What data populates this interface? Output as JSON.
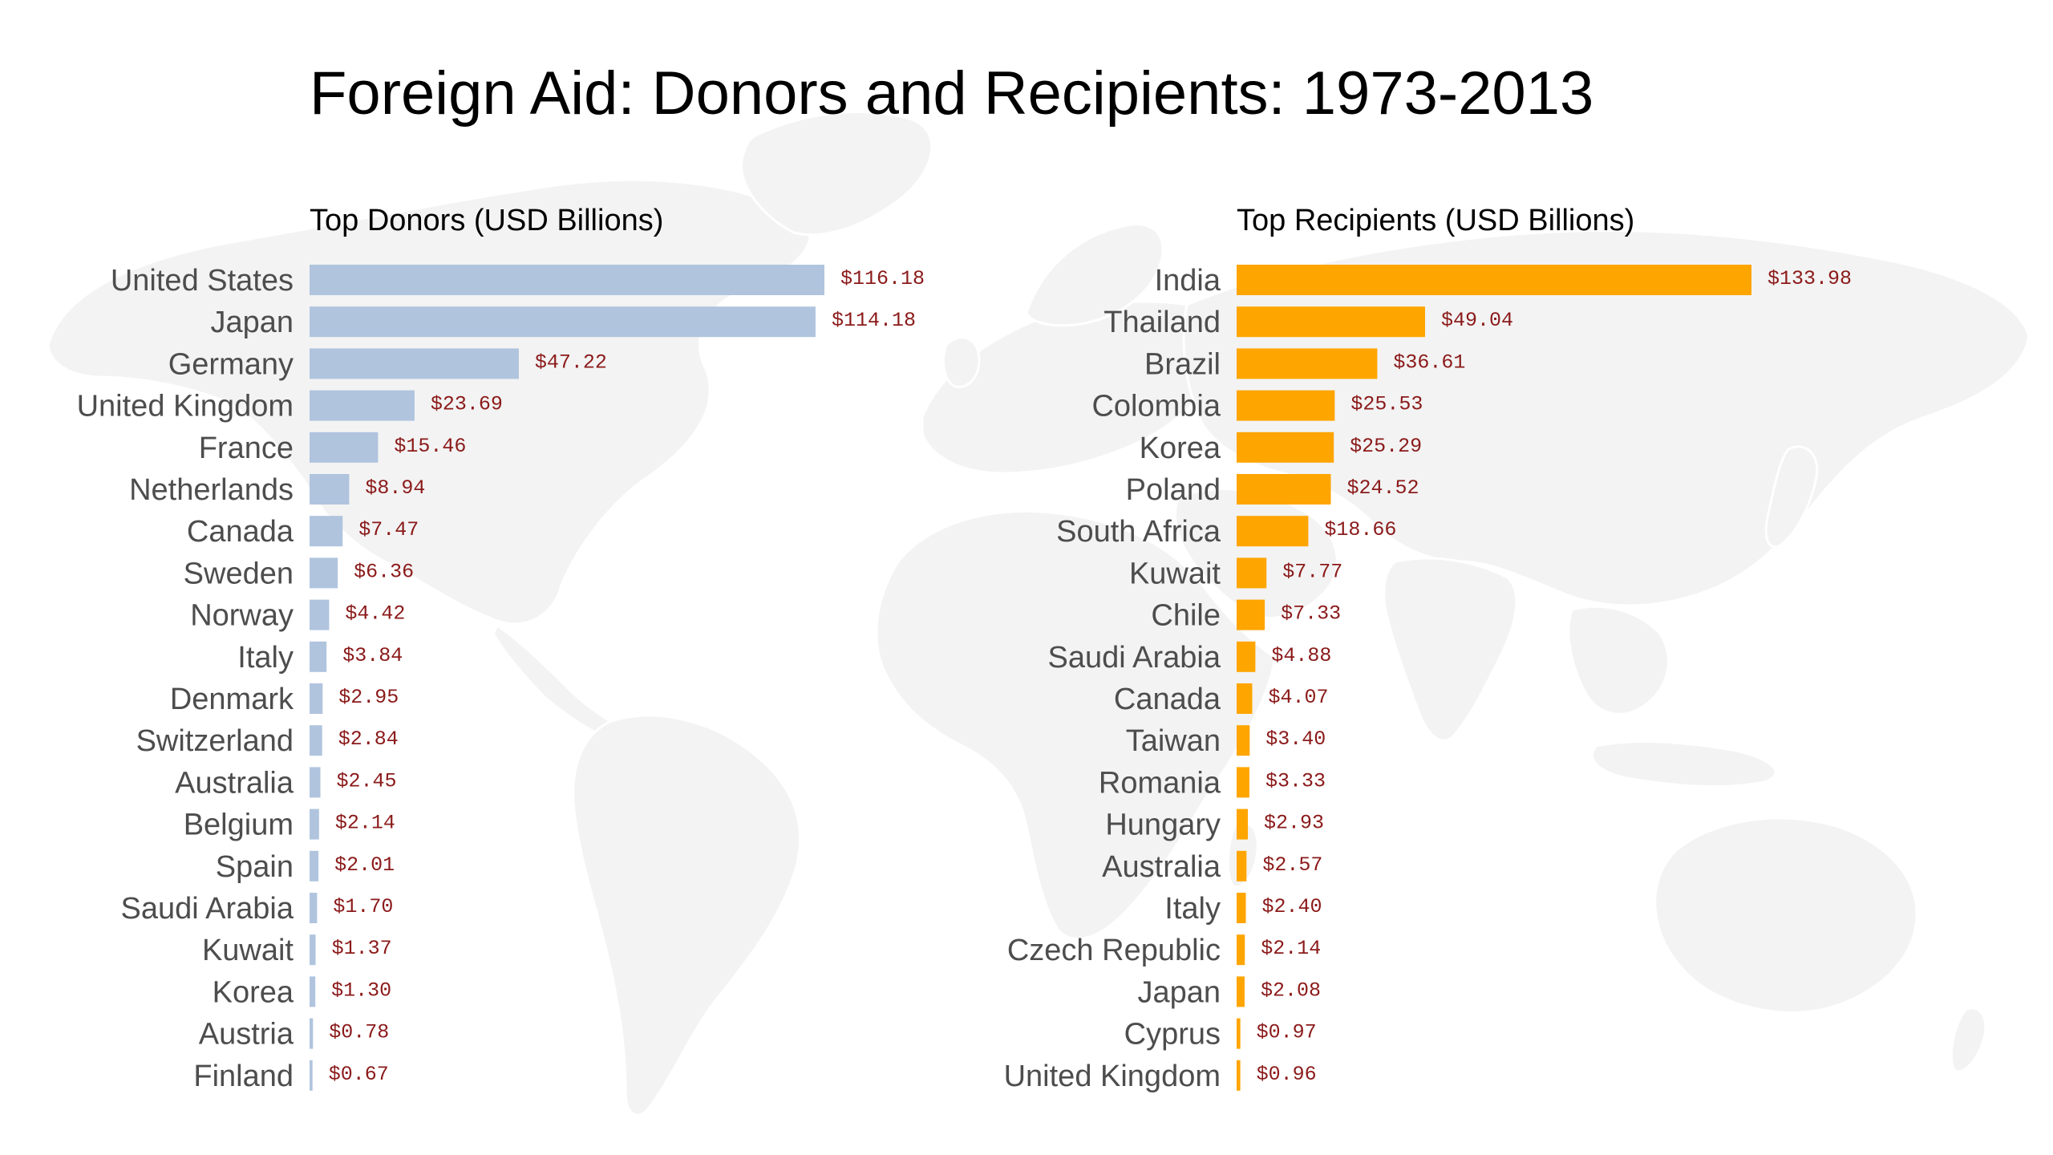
{
  "title": "Foreign Aid: Donors and Recipients: 1973-2013",
  "chart_data": [
    {
      "type": "bar",
      "orientation": "horizontal",
      "title": "Top Donors (USD Billions)",
      "bar_color": "#b0c4de",
      "value_label_color": "#8b1a1a",
      "value_prefix": "$",
      "categories": [
        "United States",
        "Japan",
        "Germany",
        "United Kingdom",
        "France",
        "Netherlands",
        "Canada",
        "Sweden",
        "Norway",
        "Italy",
        "Denmark",
        "Switzerland",
        "Australia",
        "Belgium",
        "Spain",
        "Saudi Arabia",
        "Kuwait",
        "Korea",
        "Austria",
        "Finland"
      ],
      "values": [
        116.18,
        114.18,
        47.22,
        23.69,
        15.46,
        8.94,
        7.47,
        6.36,
        4.42,
        3.84,
        2.95,
        2.84,
        2.45,
        2.14,
        2.01,
        1.7,
        1.37,
        1.3,
        0.78,
        0.67
      ],
      "value_labels": [
        "$116.18",
        "$114.18",
        "$47.22",
        "$23.69",
        "$15.46",
        "$8.94",
        "$7.47",
        "$6.36",
        "$4.42",
        "$3.84",
        "$2.95",
        "$2.84",
        "$2.45",
        "$2.14",
        "$2.01",
        "$1.70",
        "$1.37",
        "$1.30",
        "$0.78",
        "$0.67"
      ],
      "xlim": [
        0,
        116.18
      ],
      "grid": false,
      "axes_visible": false
    },
    {
      "type": "bar",
      "orientation": "horizontal",
      "title": "Top Recipients (USD Billions)",
      "bar_color": "#ffa500",
      "value_label_color": "#8b1a1a",
      "value_prefix": "$",
      "categories": [
        "India",
        "Thailand",
        "Brazil",
        "Colombia",
        "Korea",
        "Poland",
        "South Africa",
        "Kuwait",
        "Chile",
        "Saudi Arabia",
        "Canada",
        "Taiwan",
        "Romania",
        "Hungary",
        "Australia",
        "Italy",
        "Czech Republic",
        "Japan",
        "Cyprus",
        "United Kingdom"
      ],
      "values": [
        133.98,
        49.04,
        36.61,
        25.53,
        25.29,
        24.52,
        18.66,
        7.77,
        7.33,
        4.88,
        4.07,
        3.4,
        3.33,
        2.93,
        2.57,
        2.4,
        2.14,
        2.08,
        0.97,
        0.96
      ],
      "value_labels": [
        "$133.98",
        "$49.04",
        "$36.61",
        "$25.53",
        "$25.29",
        "$24.52",
        "$18.66",
        "$7.77",
        "$7.33",
        "$4.88",
        "$4.07",
        "$3.40",
        "$3.33",
        "$2.93",
        "$2.57",
        "$2.40",
        "$2.14",
        "$2.08",
        "$0.97",
        "$0.96"
      ],
      "xlim": [
        0,
        133.98
      ],
      "grid": false,
      "axes_visible": false
    }
  ],
  "background": {
    "map": "world-map",
    "map_color": "#f2f2f2",
    "border_color": "#ffffff"
  }
}
